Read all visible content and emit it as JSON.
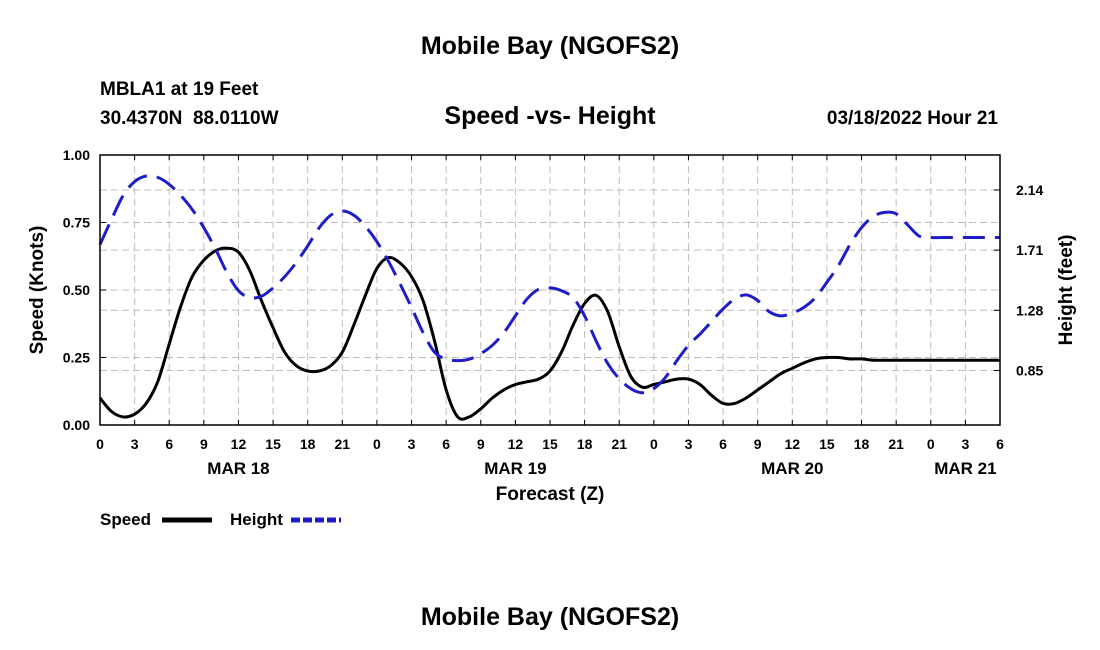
{
  "header": {
    "title": "Mobile Bay (NGOFS2)",
    "station": "MBLA1 at 19 Feet",
    "coords": "30.4370N  88.0110W",
    "subtitle": "Speed -vs- Height",
    "datetime": "03/18/2022 Hour 21",
    "footer_title": "Mobile Bay (NGOFS2)"
  },
  "legend": {
    "speed_label": "Speed",
    "height_label": "Height"
  },
  "colors": {
    "speed": "#000000",
    "height": "#1e1ec8",
    "grid": "#bdbdbd"
  },
  "chart_data": {
    "type": "line",
    "xlabel": "Forecast (Z)",
    "ylabel": "Speed (Knots)",
    "y2label": "Height (feet)",
    "xlim": [
      0,
      78
    ],
    "ylim": [
      0,
      1
    ],
    "y2lim": [
      0.46,
      2.39
    ],
    "x_ticks": [
      0,
      3,
      6,
      9,
      12,
      15,
      18,
      21,
      24,
      27,
      30,
      33,
      36,
      39,
      42,
      45,
      48,
      51,
      54,
      57,
      60,
      63,
      66,
      69,
      72,
      75,
      78
    ],
    "x_tick_labels": [
      "0",
      "3",
      "6",
      "9",
      "12",
      "15",
      "18",
      "21",
      "0",
      "3",
      "6",
      "9",
      "12",
      "15",
      "18",
      "21",
      "0",
      "3",
      "6",
      "9",
      "12",
      "15",
      "18",
      "21",
      "0",
      "3",
      "6"
    ],
    "y_ticks": [
      0,
      0.25,
      0.5,
      0.75,
      1.0
    ],
    "y_tick_labels": [
      "0.00",
      "0.25",
      "0.50",
      "0.75",
      "1.00"
    ],
    "y2_ticks": [
      0.85,
      1.28,
      1.71,
      2.14
    ],
    "y2_tick_labels": [
      "0.85",
      "1.28",
      "1.71",
      "2.14"
    ],
    "day_labels": [
      {
        "x": 12,
        "label": "MAR 18"
      },
      {
        "x": 36,
        "label": "MAR 19"
      },
      {
        "x": 60,
        "label": "MAR 20"
      },
      {
        "x": 75,
        "label": "MAR 21"
      }
    ],
    "series": [
      {
        "name": "Speed",
        "axis": "left",
        "style": "solid",
        "x": [
          0,
          1,
          2,
          3,
          4,
          5,
          6,
          7,
          8,
          9,
          10,
          11,
          12,
          13,
          14,
          15,
          16,
          17,
          18,
          19,
          20,
          21,
          22,
          23,
          24,
          25,
          26,
          27,
          28,
          29,
          30,
          31,
          32,
          33,
          34,
          35,
          36,
          37,
          38,
          39,
          40,
          41,
          42,
          43,
          44,
          45,
          46,
          47,
          48,
          49,
          50,
          51,
          52,
          53,
          54,
          55,
          56,
          57,
          58,
          59,
          60,
          61,
          62,
          63,
          64,
          65,
          66,
          67,
          68,
          69,
          70,
          71,
          72,
          73,
          74,
          75,
          76,
          77,
          78
        ],
        "values": [
          0.1,
          0.05,
          0.03,
          0.04,
          0.08,
          0.16,
          0.3,
          0.44,
          0.55,
          0.61,
          0.645,
          0.655,
          0.64,
          0.57,
          0.46,
          0.36,
          0.27,
          0.22,
          0.2,
          0.2,
          0.22,
          0.27,
          0.37,
          0.48,
          0.58,
          0.62,
          0.6,
          0.55,
          0.46,
          0.31,
          0.13,
          0.03,
          0.03,
          0.06,
          0.1,
          0.13,
          0.15,
          0.16,
          0.17,
          0.2,
          0.27,
          0.37,
          0.45,
          0.48,
          0.42,
          0.29,
          0.18,
          0.14,
          0.15,
          0.16,
          0.17,
          0.17,
          0.15,
          0.11,
          0.08,
          0.08,
          0.1,
          0.13,
          0.16,
          0.19,
          0.21,
          0.23,
          0.245,
          0.25,
          0.25,
          0.245,
          0.245,
          0.24,
          0.24,
          0.24,
          0.24,
          0.24,
          0.24,
          0.24,
          0.24,
          0.24,
          0.24,
          0.24,
          0.24
        ]
      },
      {
        "name": "Height",
        "axis": "right",
        "style": "dashed",
        "x": [
          0,
          1,
          2,
          3,
          4,
          5,
          6,
          7,
          8,
          9,
          10,
          11,
          12,
          13,
          14,
          15,
          16,
          17,
          18,
          19,
          20,
          21,
          22,
          23,
          24,
          25,
          26,
          27,
          28,
          29,
          30,
          31,
          32,
          33,
          34,
          35,
          36,
          37,
          38,
          39,
          40,
          41,
          42,
          43,
          44,
          45,
          46,
          47,
          48,
          49,
          50,
          51,
          52,
          53,
          54,
          55,
          56,
          57,
          58,
          59,
          60,
          61,
          62,
          63,
          64,
          65,
          66,
          67,
          68,
          69,
          70,
          71,
          72,
          73,
          74,
          75,
          76,
          77,
          78
        ],
        "values": [
          1.75,
          1.93,
          2.1,
          2.2,
          2.24,
          2.23,
          2.18,
          2.1,
          2.0,
          1.87,
          1.72,
          1.55,
          1.42,
          1.37,
          1.38,
          1.44,
          1.52,
          1.62,
          1.74,
          1.87,
          1.96,
          1.99,
          1.96,
          1.88,
          1.77,
          1.63,
          1.47,
          1.3,
          1.12,
          0.98,
          0.93,
          0.92,
          0.93,
          0.97,
          1.03,
          1.12,
          1.24,
          1.36,
          1.43,
          1.44,
          1.42,
          1.37,
          1.24,
          1.06,
          0.9,
          0.79,
          0.72,
          0.69,
          0.72,
          0.8,
          0.92,
          1.03,
          1.11,
          1.2,
          1.29,
          1.36,
          1.39,
          1.35,
          1.27,
          1.24,
          1.26,
          1.3,
          1.37,
          1.48,
          1.6,
          1.75,
          1.87,
          1.95,
          1.98,
          1.97,
          1.89,
          1.81,
          1.8,
          1.8,
          1.8,
          1.8,
          1.8,
          1.8,
          1.8
        ]
      }
    ]
  }
}
